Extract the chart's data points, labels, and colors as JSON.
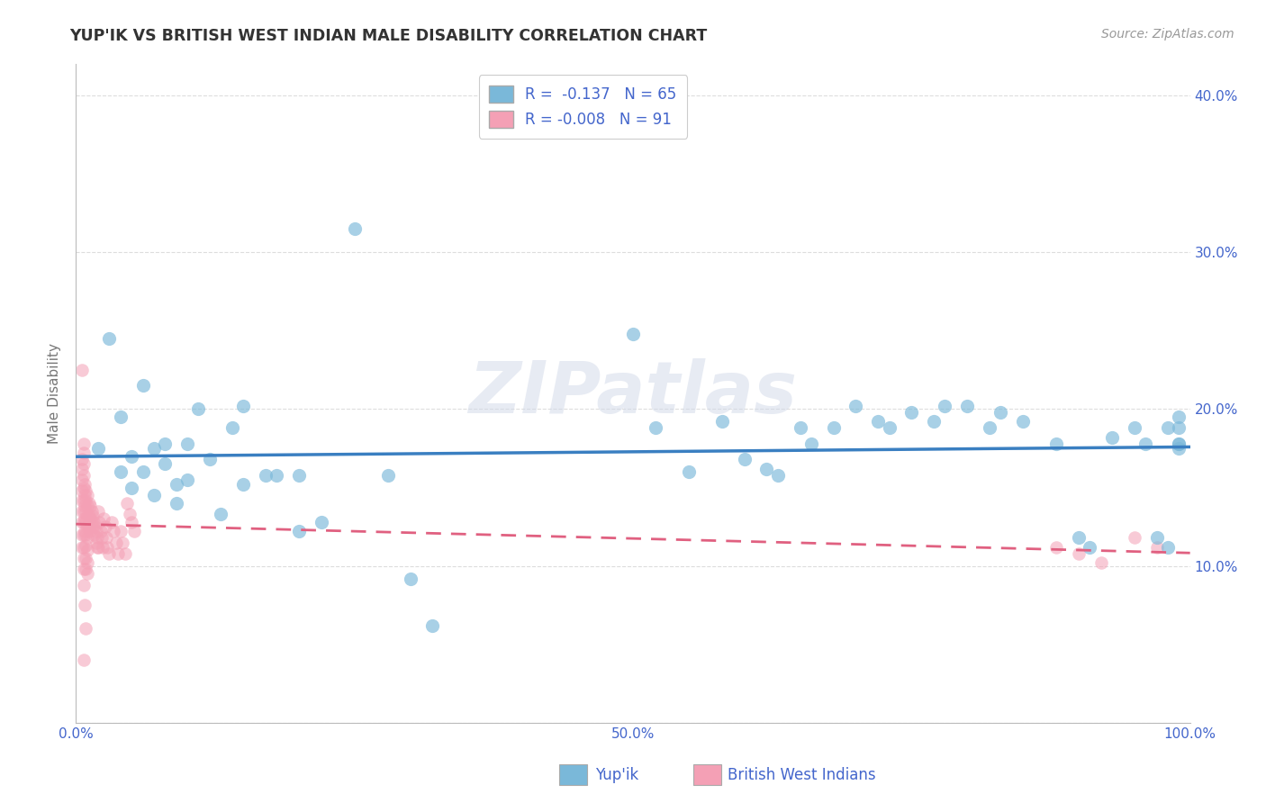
{
  "title": "YUP'IK VS BRITISH WEST INDIAN MALE DISABILITY CORRELATION CHART",
  "source": "Source: ZipAtlas.com",
  "ylabel": "Male Disability",
  "watermark": "ZIPatlas",
  "xlim": [
    0.0,
    1.0
  ],
  "ylim": [
    0.0,
    0.42
  ],
  "xticks": [
    0.0,
    0.1,
    0.2,
    0.3,
    0.4,
    0.5,
    0.6,
    0.7,
    0.8,
    0.9,
    1.0
  ],
  "yticks": [
    0.0,
    0.1,
    0.2,
    0.3,
    0.4
  ],
  "ytick_labels": [
    "",
    "10.0%",
    "20.0%",
    "30.0%",
    "40.0%"
  ],
  "xtick_labels": [
    "0.0%",
    "",
    "",
    "",
    "",
    "50.0%",
    "",
    "",
    "",
    "",
    "100.0%"
  ],
  "legend_label1": "Yup'ik",
  "legend_label2": "British West Indians",
  "R1": -0.137,
  "N1": 65,
  "R2": -0.008,
  "N2": 91,
  "color1": "#7ab8d9",
  "color2": "#f4a0b5",
  "trendline_color1": "#3a7fc1",
  "trendline_color2": "#e06080",
  "background_color": "#ffffff",
  "grid_color": "#dddddd",
  "text_color": "#4466cc",
  "title_color": "#333333",
  "source_color": "#999999",
  "ylabel_color": "#777777",
  "yupik_x": [
    0.02,
    0.03,
    0.04,
    0.04,
    0.05,
    0.05,
    0.06,
    0.06,
    0.07,
    0.07,
    0.08,
    0.08,
    0.09,
    0.09,
    0.1,
    0.1,
    0.11,
    0.12,
    0.13,
    0.14,
    0.15,
    0.15,
    0.17,
    0.18,
    0.2,
    0.2,
    0.22,
    0.25,
    0.28,
    0.3,
    0.32,
    0.5,
    0.52,
    0.55,
    0.58,
    0.6,
    0.62,
    0.63,
    0.65,
    0.66,
    0.68,
    0.7,
    0.72,
    0.73,
    0.75,
    0.77,
    0.78,
    0.8,
    0.82,
    0.83,
    0.85,
    0.88,
    0.9,
    0.91,
    0.93,
    0.95,
    0.96,
    0.97,
    0.98,
    0.98,
    0.99,
    0.99,
    0.99,
    0.99,
    0.99
  ],
  "yupik_y": [
    0.175,
    0.245,
    0.195,
    0.16,
    0.17,
    0.15,
    0.215,
    0.16,
    0.175,
    0.145,
    0.165,
    0.178,
    0.152,
    0.14,
    0.178,
    0.155,
    0.2,
    0.168,
    0.133,
    0.188,
    0.202,
    0.152,
    0.158,
    0.158,
    0.158,
    0.122,
    0.128,
    0.315,
    0.158,
    0.092,
    0.062,
    0.248,
    0.188,
    0.16,
    0.192,
    0.168,
    0.162,
    0.158,
    0.188,
    0.178,
    0.188,
    0.202,
    0.192,
    0.188,
    0.198,
    0.192,
    0.202,
    0.202,
    0.188,
    0.198,
    0.192,
    0.178,
    0.118,
    0.112,
    0.182,
    0.188,
    0.178,
    0.118,
    0.112,
    0.188,
    0.178,
    0.188,
    0.195,
    0.178,
    0.175
  ],
  "bwi_x": [
    0.005,
    0.005,
    0.005,
    0.005,
    0.005,
    0.005,
    0.005,
    0.005,
    0.005,
    0.005,
    0.007,
    0.007,
    0.007,
    0.007,
    0.007,
    0.007,
    0.007,
    0.007,
    0.007,
    0.007,
    0.007,
    0.007,
    0.007,
    0.007,
    0.008,
    0.008,
    0.008,
    0.008,
    0.008,
    0.008,
    0.009,
    0.009,
    0.009,
    0.009,
    0.009,
    0.009,
    0.009,
    0.009,
    0.009,
    0.01,
    0.01,
    0.01,
    0.01,
    0.01,
    0.01,
    0.01,
    0.01,
    0.012,
    0.012,
    0.012,
    0.013,
    0.013,
    0.013,
    0.014,
    0.014,
    0.015,
    0.015,
    0.016,
    0.016,
    0.017,
    0.018,
    0.018,
    0.019,
    0.019,
    0.02,
    0.02,
    0.021,
    0.022,
    0.023,
    0.024,
    0.025,
    0.026,
    0.027,
    0.028,
    0.03,
    0.032,
    0.034,
    0.036,
    0.038,
    0.04,
    0.042,
    0.044,
    0.046,
    0.048,
    0.05,
    0.052,
    0.88,
    0.9,
    0.92,
    0.95,
    0.97
  ],
  "bwi_y": [
    0.168,
    0.162,
    0.155,
    0.148,
    0.142,
    0.135,
    0.128,
    0.12,
    0.112,
    0.225,
    0.178,
    0.172,
    0.165,
    0.158,
    0.15,
    0.142,
    0.135,
    0.128,
    0.12,
    0.112,
    0.105,
    0.098,
    0.088,
    0.04,
    0.152,
    0.145,
    0.138,
    0.13,
    0.122,
    0.075,
    0.148,
    0.142,
    0.135,
    0.128,
    0.12,
    0.113,
    0.105,
    0.098,
    0.06,
    0.145,
    0.138,
    0.132,
    0.125,
    0.118,
    0.11,
    0.102,
    0.095,
    0.14,
    0.132,
    0.125,
    0.138,
    0.13,
    0.122,
    0.135,
    0.128,
    0.132,
    0.125,
    0.128,
    0.12,
    0.125,
    0.122,
    0.115,
    0.118,
    0.112,
    0.135,
    0.112,
    0.128,
    0.122,
    0.118,
    0.112,
    0.13,
    0.125,
    0.118,
    0.112,
    0.108,
    0.128,
    0.122,
    0.115,
    0.108,
    0.122,
    0.115,
    0.108,
    0.14,
    0.133,
    0.128,
    0.122,
    0.112,
    0.108,
    0.102,
    0.118,
    0.112
  ]
}
